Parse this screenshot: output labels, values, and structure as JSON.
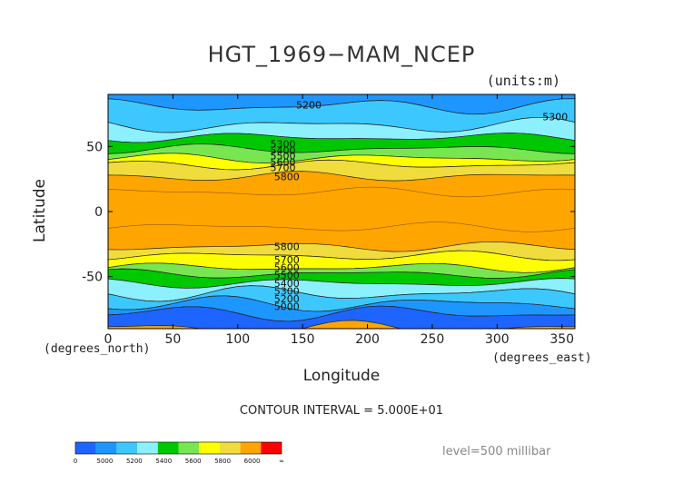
{
  "title": "HGT_1969−MAM_NCEP",
  "units_label": "(units:m)",
  "xlabel": "Longitude",
  "ylabel": "Latitude",
  "x_unit": "(degrees_east)",
  "y_unit": "(degrees_north)",
  "contour_interval": "CONTOUR INTERVAL = 5.000E+01",
  "level": "level=500 millibar",
  "colors": {
    "c_lt5000": "#1e64ff",
    "c_5000": "#1e96ff",
    "c_5200": "#3cc8ff",
    "c_5300": "#8cf0ff",
    "c_5400": "#00c800",
    "c_5500": "#78e650",
    "c_5600": "#ffff00",
    "c_5700": "#f0dc3c",
    "c_5800": "#ffa500",
    "c_6000": "#ff0000"
  },
  "chart_data": {
    "type": "contour-map",
    "xlim": [
      0,
      360
    ],
    "ylim": [
      -90,
      90
    ],
    "x_ticks": [
      0,
      50,
      100,
      150,
      200,
      250,
      300,
      350
    ],
    "y_ticks": [
      -50,
      0,
      50
    ],
    "bands_north": [
      {
        "lat_from": 90,
        "lat_to": 81,
        "color_key": "c_5000"
      },
      {
        "lat_from": 81,
        "lat_to": 66,
        "color_key": "c_5200"
      },
      {
        "lat_from": 66,
        "lat_to": 57,
        "color_key": "c_5300"
      },
      {
        "lat_from": 57,
        "lat_to": 48,
        "color_key": "c_5400"
      },
      {
        "lat_from": 48,
        "lat_to": 41,
        "color_key": "c_5500"
      },
      {
        "lat_from": 41,
        "lat_to": 36,
        "color_key": "c_5600"
      },
      {
        "lat_from": 36,
        "lat_to": 27,
        "color_key": "c_5700"
      }
    ],
    "bands_south": [
      {
        "lat_from": -27,
        "lat_to": -34,
        "color_key": "c_5700"
      },
      {
        "lat_from": -34,
        "lat_to": -43,
        "color_key": "c_5600"
      },
      {
        "lat_from": -43,
        "lat_to": -48,
        "color_key": "c_5500"
      },
      {
        "lat_from": -48,
        "lat_to": -55,
        "color_key": "c_5400"
      },
      {
        "lat_from": -55,
        "lat_to": -63,
        "color_key": "c_5300"
      },
      {
        "lat_from": -63,
        "lat_to": -71,
        "color_key": "c_5200"
      },
      {
        "lat_from": -71,
        "lat_to": -78,
        "color_key": "c_5000"
      },
      {
        "lat_from": -78,
        "lat_to": -90,
        "color_key": "c_lt5000"
      }
    ],
    "tropics_color_key": "c_5800",
    "contour_labels": [
      {
        "text": "5200",
        "lon": 145,
        "lat": 82
      },
      {
        "text": "5300",
        "lon": 335,
        "lat": 73
      },
      {
        "text": "5300",
        "lon": 125,
        "lat": 52
      },
      {
        "text": "5400",
        "lon": 125,
        "lat": 47
      },
      {
        "text": "5500",
        "lon": 125,
        "lat": 43
      },
      {
        "text": "5600",
        "lon": 125,
        "lat": 38
      },
      {
        "text": "5700",
        "lon": 125,
        "lat": 34
      },
      {
        "text": "5800",
        "lon": 128,
        "lat": 27
      },
      {
        "text": "5800",
        "lon": 128,
        "lat": -27
      },
      {
        "text": "5700",
        "lon": 128,
        "lat": -37
      },
      {
        "text": "5600",
        "lon": 128,
        "lat": -43
      },
      {
        "text": "5500",
        "lon": 128,
        "lat": -49
      },
      {
        "text": "5400",
        "lon": 128,
        "lat": -55
      },
      {
        "text": "5300",
        "lon": 128,
        "lat": -61
      },
      {
        "text": "5200",
        "lon": 128,
        "lat": -67
      },
      {
        "text": "5000",
        "lon": 128,
        "lat": -73
      }
    ],
    "colorbar": {
      "labels": [
        "0",
        "5000",
        "5200",
        "5400",
        "5600",
        "5800",
        "6000",
        "∞"
      ],
      "swatch_color_keys": [
        "c_lt5000",
        "c_5000",
        "c_5200",
        "c_5300",
        "c_5400",
        "c_5500",
        "c_5600",
        "c_5700",
        "c_5800",
        "c_6000"
      ]
    }
  }
}
